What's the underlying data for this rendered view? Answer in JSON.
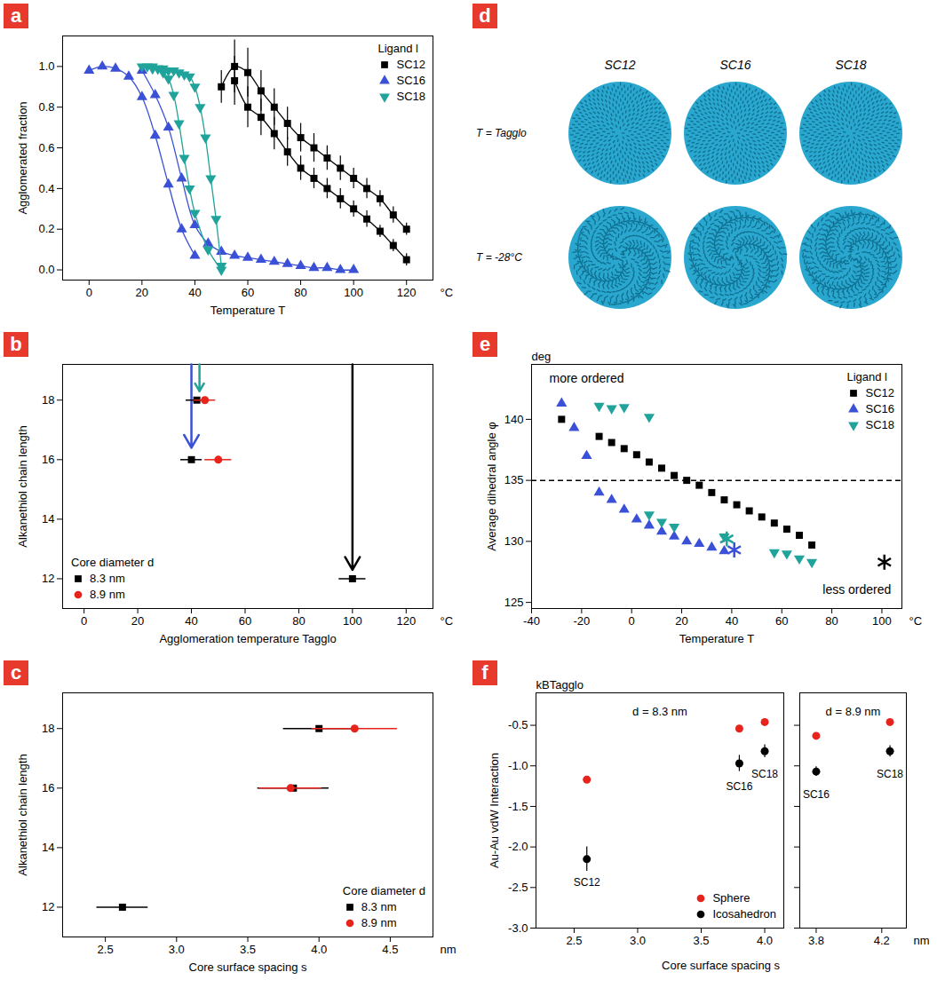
{
  "chart_data": [
    {
      "panel": "a",
      "type": "line",
      "xlabel": "Temperature T",
      "x_unit": "°C",
      "ylabel": "Agglomerated fraction",
      "legend_title": "Ligand l",
      "legend": "top-right",
      "xlim": [
        -10,
        130
      ],
      "xticks": [
        0,
        20,
        40,
        60,
        80,
        100,
        120
      ],
      "ylim": [
        -0.05,
        1.15
      ],
      "yticks": [
        {
          "value": 0,
          "label": "0.0"
        },
        {
          "value": 0.2,
          "label": "0.2"
        },
        {
          "value": 0.4,
          "label": "0.4"
        },
        {
          "value": 0.6,
          "label": "0.6"
        },
        {
          "value": 0.8,
          "label": "0.8"
        },
        {
          "value": 1,
          "label": "1.0"
        }
      ],
      "series": [
        {
          "name": "SC12",
          "color": "#000000",
          "marker": "square",
          "curves": [
            {
              "x": [
                50,
                55,
                60,
                65,
                70,
                75,
                80,
                85,
                90,
                95,
                100,
                105,
                110,
                115,
                120
              ],
              "values": [
                0.9,
                1.0,
                0.97,
                0.88,
                0.8,
                0.72,
                0.65,
                0.6,
                0.55,
                0.5,
                0.45,
                0.4,
                0.35,
                0.27,
                0.2
              ],
              "errors": [
                0.08,
                0.13,
                0.12,
                0.1,
                0.09,
                0.08,
                0.07,
                0.07,
                0.06,
                0.06,
                0.05,
                0.05,
                0.04,
                0.04,
                0.03
              ]
            },
            {
              "x": [
                55,
                60,
                65,
                70,
                75,
                80,
                85,
                90,
                95,
                100,
                105,
                110,
                115,
                120
              ],
              "values": [
                0.93,
                0.8,
                0.75,
                0.67,
                0.58,
                0.5,
                0.45,
                0.4,
                0.35,
                0.3,
                0.25,
                0.19,
                0.12,
                0.05
              ],
              "errors": [
                0.12,
                0.1,
                0.09,
                0.08,
                0.07,
                0.06,
                0.05,
                0.05,
                0.05,
                0.04,
                0.04,
                0.03,
                0.03,
                0.03
              ]
            }
          ]
        },
        {
          "name": "SC16",
          "color": "#3a50d6",
          "marker": "triangle",
          "curves": [
            {
              "x": [
                0,
                5,
                10,
                15,
                20,
                25,
                30,
                35,
                40
              ],
              "values": [
                0.98,
                1.0,
                0.99,
                0.95,
                0.85,
                0.66,
                0.42,
                0.2,
                0.07
              ]
            },
            {
              "x": [
                20,
                25,
                30,
                35,
                40,
                45,
                50,
                55,
                60,
                65,
                70,
                75,
                80,
                85,
                90,
                95,
                100
              ],
              "values": [
                0.98,
                0.86,
                0.7,
                0.45,
                0.22,
                0.13,
                0.09,
                0.07,
                0.06,
                0.05,
                0.04,
                0.03,
                0.02,
                0.01,
                0.01,
                0.0,
                0.0
              ]
            }
          ]
        },
        {
          "name": "SC18",
          "color": "#1fa39a",
          "marker": "triangle-down",
          "curves": [
            {
              "x": [
                20,
                22,
                24,
                26,
                28,
                30,
                32,
                34,
                36,
                38,
                40,
                45,
                50
              ],
              "values": [
                1.0,
                1.0,
                0.99,
                0.99,
                0.97,
                0.94,
                0.86,
                0.72,
                0.55,
                0.4,
                0.28,
                0.1,
                0.0
              ]
            },
            {
              "x": [
                24,
                26,
                28,
                30,
                32,
                34,
                36,
                38,
                40,
                42,
                44,
                46,
                48,
                50
              ],
              "values": [
                1.0,
                0.99,
                0.99,
                0.98,
                0.98,
                0.97,
                0.96,
                0.95,
                0.9,
                0.8,
                0.65,
                0.45,
                0.25,
                0.02
              ]
            }
          ]
        }
      ]
    },
    {
      "panel": "b",
      "type": "scatter",
      "xlabel": "Agglomeration temperature Tagglo",
      "x_unit": "°C",
      "ylabel": "Alkanethiol chain length",
      "legend_title": "Core diameter d",
      "legend": "bottom-left",
      "xlim": [
        -8,
        130
      ],
      "xticks": [
        0,
        20,
        40,
        60,
        80,
        100,
        120
      ],
      "ylim": [
        11,
        19.2
      ],
      "yticks": [
        12,
        14,
        16,
        18
      ],
      "arrows": [
        {
          "x": 40,
          "y_end": 16.4,
          "color": "#3a50d6"
        },
        {
          "x": 43,
          "y_end": 18.3,
          "color": "#1fa39a"
        },
        {
          "x": 100,
          "y_end": 12.3,
          "color": "#000000"
        }
      ],
      "series": [
        {
          "name": "8.3 nm",
          "color": "#000000",
          "marker": "square",
          "x": [
            40,
            42,
            100
          ],
          "values": [
            16,
            18,
            12
          ],
          "x_errors": [
            4,
            4,
            5
          ]
        },
        {
          "name": "8.9 nm",
          "color": "#e8231c",
          "marker": "circle",
          "x": [
            50,
            45
          ],
          "values": [
            16,
            18
          ],
          "x_errors": [
            5,
            4
          ]
        }
      ]
    },
    {
      "panel": "c",
      "type": "scatter",
      "xlabel": "Core surface spacing s",
      "x_unit": "nm",
      "ylabel": "Alkanethiol chain length",
      "legend_title": "Core diameter d",
      "legend": "bottom-right",
      "xlim": [
        2.2,
        4.8
      ],
      "xticks": [
        2.5,
        {
          "value": 3,
          "label": "3.0"
        },
        3.5,
        {
          "value": 4,
          "label": "4.0"
        },
        4.5
      ],
      "ylim": [
        11,
        19.2
      ],
      "yticks": [
        12,
        14,
        16,
        18
      ],
      "series": [
        {
          "name": "8.3 nm",
          "color": "#000000",
          "marker": "square",
          "x": [
            2.62,
            3.82,
            4.0
          ],
          "values": [
            12,
            16,
            18
          ],
          "x_errors": [
            0.18,
            0.25,
            0.25
          ]
        },
        {
          "name": "8.9 nm",
          "color": "#e8231c",
          "marker": "circle",
          "x": [
            3.8,
            4.25
          ],
          "values": [
            16,
            18
          ],
          "x_errors": [
            0.22,
            0.3
          ]
        }
      ]
    },
    {
      "panel": "d",
      "type": "image",
      "columns": [
        "SC12",
        "SC16",
        "SC18"
      ],
      "rows": [
        "T = Tagglo",
        "T = -28°C"
      ]
    },
    {
      "panel": "e",
      "type": "scatter",
      "xlabel": "Temperature T",
      "x_unit": "°C",
      "ylabel": "Average dihedral angle φ",
      "y_unit": "deg",
      "legend_title": "Ligand l",
      "legend": "top-right",
      "xlim": [
        -40,
        108
      ],
      "xticks": [
        -40,
        -20,
        0,
        20,
        40,
        60,
        80,
        100
      ],
      "ylim": [
        124.5,
        144.5
      ],
      "yticks": [
        125,
        130,
        135,
        140
      ],
      "reference_line": 135,
      "annotations": [
        {
          "text": "more ordered",
          "x": -18,
          "y": 143.3
        },
        {
          "text": "less ordered",
          "x": 90,
          "y": 126
        }
      ],
      "series": [
        {
          "name": "SC12",
          "color": "#000000",
          "marker": "square",
          "x": [
            -28,
            -13,
            -8,
            -3,
            2,
            7,
            12,
            17,
            22,
            27,
            32,
            37,
            42,
            47,
            52,
            57,
            62,
            67,
            72
          ],
          "values": [
            140.0,
            138.6,
            138.1,
            137.6,
            137.1,
            136.5,
            136.0,
            135.4,
            135.0,
            134.6,
            134.0,
            133.4,
            133.0,
            132.5,
            132.0,
            131.5,
            131.0,
            130.5,
            129.7
          ],
          "highlight": {
            "x": 101,
            "y": 128.3,
            "marker": "asterisk"
          }
        },
        {
          "name": "SC16",
          "color": "#3a50d6",
          "marker": "triangle",
          "x": [
            -28,
            -23,
            -18,
            -13,
            -8,
            -3,
            2,
            7,
            12,
            17,
            22,
            27,
            32,
            37
          ],
          "values": [
            141.3,
            139.3,
            137.0,
            134.0,
            133.4,
            132.6,
            131.8,
            131.3,
            130.8,
            130.4,
            130.0,
            129.8,
            129.5,
            129.2
          ],
          "highlight": {
            "x": 41,
            "y": 129.3,
            "marker": "asterisk"
          }
        },
        {
          "name": "SC18",
          "color": "#1fa39a",
          "marker": "triangle-down",
          "x": [
            -13,
            -8,
            -3,
            7,
            7,
            12,
            17,
            37,
            57,
            62,
            67,
            72
          ],
          "values": [
            141.1,
            140.9,
            141.0,
            140.2,
            132.2,
            131.6,
            131.2,
            130.4,
            129.1,
            129.0,
            128.6,
            128.3
          ],
          "highlight": {
            "x": 38,
            "y": 130.2,
            "marker": "asterisk"
          }
        }
      ]
    },
    {
      "panel": "f",
      "type": "scatter",
      "xlabel": "Core surface spacing s",
      "x_unit": "nm",
      "ylabel": "Au-Au vdW Interaction",
      "y_unit": "kBTagglo",
      "legend": "bottom-right",
      "ylim": [
        -3.0,
        -0.1
      ],
      "yticks": [
        {
          "value": -3,
          "label": "-3.0"
        },
        {
          "value": -2.5,
          "label": "-2.5"
        },
        {
          "value": -2,
          "label": "-2.0"
        },
        {
          "value": -1.5,
          "label": "-1.5"
        },
        {
          "value": -1,
          "label": "-1.0"
        },
        {
          "value": -0.5,
          "label": "-0.5"
        }
      ],
      "subplots": [
        {
          "title": "d = 8.3 nm",
          "xlim": [
            2.2,
            4.15
          ],
          "xticks": [
            2.5,
            {
              "value": 3,
              "label": "3.0"
            },
            3.5,
            {
              "value": 4,
              "label": "4.0"
            }
          ],
          "series": [
            {
              "name": "Sphere",
              "color": "#e8231c",
              "marker": "circle",
              "x": [
                2.6,
                3.8,
                4.0
              ],
              "values": [
                -1.17,
                -0.54,
                -0.46
              ]
            },
            {
              "name": "Icosahedron",
              "color": "#000000",
              "marker": "circle",
              "x": [
                2.6,
                3.8,
                4.0
              ],
              "values": [
                -2.15,
                -0.97,
                -0.82
              ],
              "errors": [
                0.15,
                0.1,
                0.08
              ]
            }
          ],
          "point_labels": [
            {
              "text": "SC12",
              "x": 2.6,
              "y": -2.15
            },
            {
              "text": "SC16",
              "x": 3.8,
              "y": -0.97
            },
            {
              "text": "SC18",
              "x": 4.0,
              "y": -0.82
            }
          ]
        },
        {
          "title": "d = 8.9 nm",
          "xlim": [
            3.7,
            4.35
          ],
          "xticks": [
            3.8,
            4.2
          ],
          "series": [
            {
              "name": "Sphere",
              "color": "#e8231c",
              "marker": "circle",
              "x": [
                3.8,
                4.25
              ],
              "values": [
                -0.63,
                -0.46
              ]
            },
            {
              "name": "Icosahedron",
              "color": "#000000",
              "marker": "circle",
              "x": [
                3.8,
                4.25
              ],
              "values": [
                -1.07,
                -0.82
              ],
              "errors": [
                0.06,
                0.07
              ]
            }
          ],
          "point_labels": [
            {
              "text": "SC16",
              "x": 3.8,
              "y": -1.07
            },
            {
              "text": "SC18",
              "x": 4.25,
              "y": -0.82
            }
          ]
        }
      ]
    }
  ]
}
